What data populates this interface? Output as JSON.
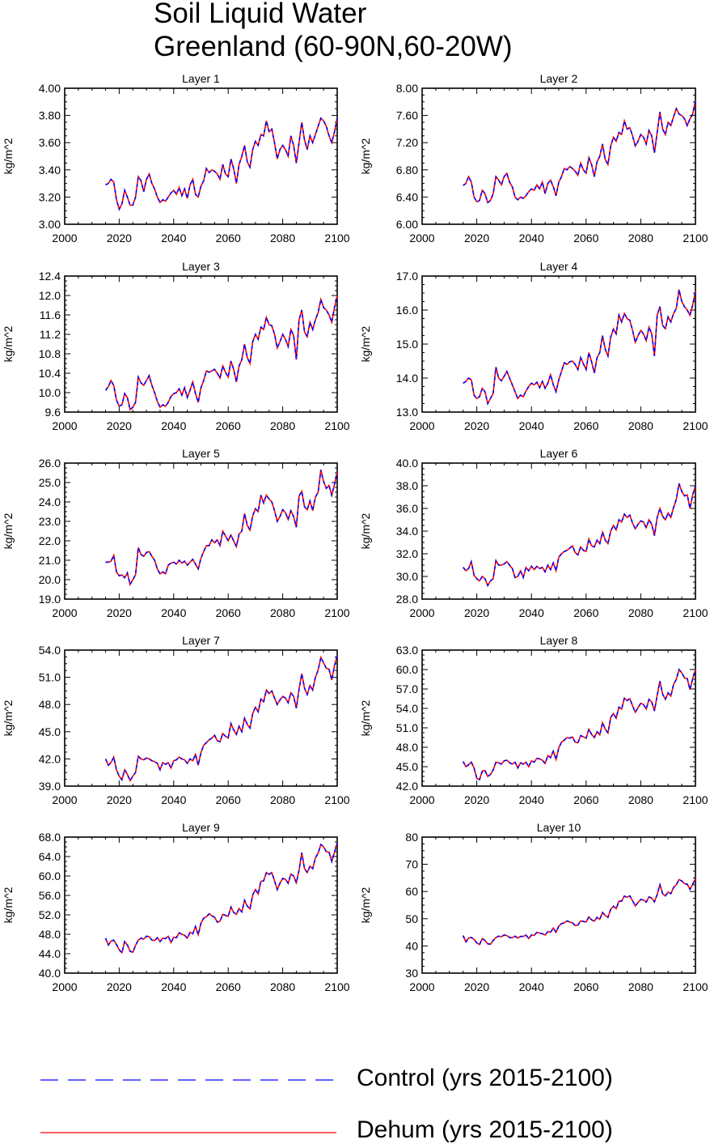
{
  "title": {
    "line1": "Soil Liquid Water",
    "line2": "Greenland (60-90N,60-20W)"
  },
  "legend": [
    {
      "label": "Control (yrs 2015-2100)",
      "color": "#0000ff",
      "style": "dashed"
    },
    {
      "label": "Dehum (yrs 2015-2100)",
      "color": "#ff0000",
      "style": "solid"
    }
  ],
  "chart_data": [
    {
      "type": "line",
      "title": "Layer 1",
      "xlabel": "",
      "ylabel": "kg/m^2",
      "xlim": [
        2000,
        2100
      ],
      "ylim": [
        3.0,
        4.0
      ],
      "xticks": [
        "2000",
        "2020",
        "2040",
        "2060",
        "2080",
        "2100"
      ],
      "yticks": [
        "3.00",
        "3.20",
        "3.40",
        "3.60",
        "3.80",
        "4.00"
      ],
      "x_start": 2015,
      "values": [
        3.29,
        3.3,
        3.33,
        3.31,
        3.18,
        3.11,
        3.15,
        3.25,
        3.2,
        3.14,
        3.14,
        3.2,
        3.35,
        3.32,
        3.24,
        3.33,
        3.37,
        3.3,
        3.26,
        3.2,
        3.16,
        3.18,
        3.17,
        3.2,
        3.23,
        3.25,
        3.22,
        3.27,
        3.21,
        3.26,
        3.19,
        3.29,
        3.33,
        3.22,
        3.2,
        3.28,
        3.32,
        3.41,
        3.38,
        3.4,
        3.39,
        3.37,
        3.33,
        3.44,
        3.37,
        3.35,
        3.48,
        3.41,
        3.3,
        3.44,
        3.5,
        3.58,
        3.46,
        3.42,
        3.55,
        3.61,
        3.58,
        3.66,
        3.65,
        3.76,
        3.68,
        3.7,
        3.6,
        3.48,
        3.55,
        3.58,
        3.55,
        3.5,
        3.65,
        3.58,
        3.45,
        3.6,
        3.75,
        3.62,
        3.55,
        3.65,
        3.6,
        3.66,
        3.72,
        3.78,
        3.76,
        3.72,
        3.65,
        3.6,
        3.68,
        3.78
      ]
    },
    {
      "type": "line",
      "title": "Layer 2",
      "xlabel": "",
      "ylabel": "kg/m^2",
      "xlim": [
        2000,
        2100
      ],
      "ylim": [
        6.0,
        8.0
      ],
      "xticks": [
        "2000",
        "2020",
        "2040",
        "2060",
        "2080",
        "2100"
      ],
      "yticks": [
        "6.00",
        "6.40",
        "6.80",
        "7.20",
        "7.60",
        "8.00"
      ],
      "x_start": 2015,
      "values": [
        6.57,
        6.6,
        6.7,
        6.62,
        6.4,
        6.33,
        6.35,
        6.5,
        6.45,
        6.32,
        6.35,
        6.45,
        6.7,
        6.65,
        6.58,
        6.7,
        6.75,
        6.62,
        6.55,
        6.4,
        6.36,
        6.4,
        6.38,
        6.42,
        6.48,
        6.52,
        6.5,
        6.58,
        6.52,
        6.62,
        6.45,
        6.6,
        6.65,
        6.55,
        6.42,
        6.62,
        6.7,
        6.82,
        6.8,
        6.85,
        6.82,
        6.78,
        6.72,
        6.9,
        6.8,
        6.75,
        6.98,
        6.88,
        6.7,
        6.92,
        7.0,
        7.18,
        6.95,
        6.88,
        7.15,
        7.28,
        7.22,
        7.35,
        7.32,
        7.52,
        7.4,
        7.42,
        7.3,
        7.15,
        7.22,
        7.32,
        7.28,
        7.18,
        7.38,
        7.3,
        7.05,
        7.35,
        7.65,
        7.4,
        7.32,
        7.5,
        7.45,
        7.58,
        7.7,
        7.62,
        7.6,
        7.55,
        7.45,
        7.55,
        7.62,
        7.82
      ]
    },
    {
      "type": "line",
      "title": "Layer 3",
      "xlabel": "",
      "ylabel": "kg/m^2",
      "xlim": [
        2000,
        2100
      ],
      "ylim": [
        9.6,
        12.4
      ],
      "xticks": [
        "2000",
        "2020",
        "2040",
        "2060",
        "2080",
        "2100"
      ],
      "yticks": [
        "9.6",
        "10.0",
        "10.4",
        "10.8",
        "11.2",
        "11.6",
        "12.0",
        "12.4"
      ],
      "x_start": 2015,
      "values": [
        10.05,
        10.12,
        10.25,
        10.15,
        9.85,
        9.72,
        9.75,
        9.98,
        9.9,
        9.65,
        9.7,
        9.8,
        10.32,
        10.2,
        10.15,
        10.25,
        10.35,
        10.15,
        10.0,
        9.82,
        9.7,
        9.75,
        9.72,
        9.8,
        9.92,
        9.98,
        10.0,
        10.08,
        9.95,
        10.1,
        9.9,
        10.05,
        10.22,
        9.98,
        9.8,
        10.1,
        10.25,
        10.45,
        10.42,
        10.45,
        10.48,
        10.4,
        10.3,
        10.55,
        10.42,
        10.32,
        10.65,
        10.48,
        10.22,
        10.55,
        10.68,
        11.0,
        10.72,
        10.6,
        11.05,
        11.2,
        11.1,
        11.35,
        11.3,
        11.55,
        11.4,
        11.38,
        11.2,
        10.92,
        11.05,
        11.2,
        11.1,
        10.95,
        11.3,
        11.18,
        10.68,
        11.5,
        11.7,
        11.25,
        11.15,
        11.45,
        11.3,
        11.5,
        11.65,
        11.92,
        11.75,
        11.7,
        11.6,
        11.45,
        11.75,
        12.0
      ]
    },
    {
      "type": "line",
      "title": "Layer 4",
      "xlabel": "",
      "ylabel": "kg/m^2",
      "xlim": [
        2000,
        2100
      ],
      "ylim": [
        13.0,
        17.0
      ],
      "xticks": [
        "2000",
        "2020",
        "2040",
        "2060",
        "2080",
        "2100"
      ],
      "yticks": [
        "13.0",
        "14.0",
        "15.0",
        "16.0",
        "17.0"
      ],
      "x_start": 2015,
      "values": [
        13.85,
        13.9,
        14.0,
        13.95,
        13.5,
        13.4,
        13.45,
        13.7,
        13.6,
        13.25,
        13.4,
        13.55,
        14.32,
        14.0,
        13.92,
        14.05,
        14.2,
        14.0,
        13.8,
        13.6,
        13.4,
        13.5,
        13.45,
        13.62,
        13.75,
        13.85,
        13.8,
        13.88,
        13.72,
        13.9,
        13.7,
        13.85,
        14.1,
        13.8,
        13.6,
        13.95,
        14.2,
        14.45,
        14.4,
        14.48,
        14.5,
        14.4,
        14.25,
        14.6,
        14.42,
        14.25,
        14.75,
        14.48,
        14.15,
        14.6,
        14.75,
        15.25,
        14.85,
        14.65,
        15.2,
        15.45,
        15.3,
        15.85,
        15.65,
        15.9,
        15.75,
        15.7,
        15.4,
        15.05,
        15.25,
        15.4,
        15.3,
        15.1,
        15.5,
        15.3,
        14.65,
        15.85,
        16.1,
        15.55,
        15.45,
        15.8,
        15.65,
        15.9,
        16.05,
        16.6,
        16.25,
        16.1,
        16.0,
        15.85,
        16.15,
        16.55
      ]
    },
    {
      "type": "line",
      "title": "Layer 5",
      "xlabel": "",
      "ylabel": "kg/m^2",
      "xlim": [
        2000,
        2100
      ],
      "ylim": [
        19.0,
        26.0
      ],
      "xticks": [
        "2000",
        "2020",
        "2040",
        "2060",
        "2080",
        "2100"
      ],
      "yticks": [
        "19.0",
        "20.0",
        "21.0",
        "22.0",
        "23.0",
        "24.0",
        "25.0",
        "26.0"
      ],
      "x_start": 2015,
      "values": [
        20.9,
        20.9,
        20.95,
        21.25,
        20.4,
        20.2,
        20.25,
        20.1,
        20.35,
        19.75,
        20.0,
        20.25,
        21.65,
        21.3,
        21.2,
        21.4,
        21.45,
        21.2,
        21.0,
        20.55,
        20.3,
        20.4,
        20.3,
        20.75,
        20.85,
        20.9,
        20.8,
        21.0,
        20.85,
        20.95,
        20.75,
        20.9,
        21.05,
        20.8,
        20.55,
        21.1,
        21.45,
        21.75,
        21.75,
        22.05,
        21.9,
        22.05,
        21.75,
        22.5,
        22.25,
        22.0,
        22.3,
        22.0,
        21.7,
        22.35,
        22.5,
        23.4,
        22.8,
        22.55,
        23.3,
        23.65,
        23.5,
        24.35,
        23.95,
        24.35,
        24.15,
        24.0,
        23.55,
        23.0,
        23.25,
        23.6,
        23.45,
        23.1,
        23.55,
        23.25,
        22.7,
        24.3,
        24.55,
        23.75,
        23.6,
        24.05,
        23.55,
        24.25,
        24.5,
        25.65,
        25.05,
        24.7,
        24.85,
        24.35,
        24.9,
        25.55
      ]
    },
    {
      "type": "line",
      "title": "Layer 6",
      "xlabel": "",
      "ylabel": "kg/m^2",
      "xlim": [
        2000,
        2100
      ],
      "ylim": [
        28.0,
        40.0
      ],
      "xticks": [
        "2000",
        "2020",
        "2040",
        "2060",
        "2080",
        "2100"
      ],
      "yticks": [
        "28.0",
        "30.0",
        "32.0",
        "34.0",
        "36.0",
        "38.0",
        "40.0"
      ],
      "x_start": 2015,
      "values": [
        30.8,
        30.5,
        30.7,
        31.3,
        30.1,
        29.8,
        29.6,
        30.0,
        29.8,
        29.2,
        29.6,
        29.8,
        31.4,
        31.0,
        31.0,
        31.1,
        31.3,
        31.0,
        30.7,
        29.9,
        30.0,
        30.5,
        29.9,
        30.8,
        30.5,
        30.9,
        30.6,
        30.9,
        30.7,
        30.8,
        30.4,
        31.0,
        30.6,
        31.2,
        30.5,
        31.7,
        32.0,
        32.2,
        32.3,
        32.5,
        32.7,
        32.1,
        31.9,
        32.6,
        32.3,
        32.2,
        33.3,
        32.7,
        32.6,
        33.2,
        32.9,
        33.9,
        33.2,
        32.9,
        34.0,
        34.5,
        34.1,
        35.0,
        34.8,
        35.5,
        35.2,
        35.4,
        34.7,
        34.2,
        34.6,
        34.9,
        34.8,
        34.3,
        35.0,
        34.6,
        33.6,
        35.2,
        36.0,
        35.3,
        35.0,
        35.6,
        35.2,
        36.1,
        36.8,
        38.2,
        37.5,
        37.1,
        37.2,
        36.0,
        37.2,
        38.0
      ]
    },
    {
      "type": "line",
      "title": "Layer 7",
      "xlabel": "",
      "ylabel": "kg/m^2",
      "xlim": [
        2000,
        2100
      ],
      "ylim": [
        39.0,
        54.0
      ],
      "xticks": [
        "2000",
        "2020",
        "2040",
        "2060",
        "2080",
        "2100"
      ],
      "yticks": [
        "39.0",
        "42.0",
        "45.0",
        "48.0",
        "51.0",
        "54.0"
      ],
      "x_start": 2015,
      "values": [
        42.0,
        41.3,
        41.6,
        42.2,
        40.8,
        40.1,
        39.7,
        40.8,
        40.3,
        39.6,
        40.1,
        40.5,
        42.3,
        42.0,
        41.9,
        42.1,
        42.0,
        41.8,
        41.7,
        41.5,
        40.8,
        41.6,
        41.4,
        41.6,
        41.0,
        41.8,
        41.9,
        42.2,
        42.0,
        41.9,
        41.5,
        42.0,
        41.8,
        42.5,
        41.3,
        42.7,
        43.5,
        43.8,
        44.1,
        44.3,
        44.6,
        44.0,
        43.9,
        44.8,
        44.5,
        44.3,
        45.9,
        45.2,
        44.7,
        45.6,
        45.0,
        46.5,
        45.8,
        45.4,
        47.0,
        47.7,
        47.2,
        48.6,
        48.3,
        49.6,
        49.2,
        49.5,
        48.7,
        48.0,
        48.5,
        48.9,
        48.7,
        48.2,
        49.3,
        48.9,
        47.6,
        49.7,
        51.4,
        49.8,
        49.1,
        50.1,
        49.6,
        51.0,
        51.8,
        53.2,
        52.6,
        52.0,
        51.9,
        50.7,
        52.3,
        53.4
      ]
    },
    {
      "type": "line",
      "title": "Layer 8",
      "xlabel": "",
      "ylabel": "kg/m^2",
      "xlim": [
        2000,
        2100
      ],
      "ylim": [
        42.0,
        63.0
      ],
      "xticks": [
        "2000",
        "2020",
        "2040",
        "2060",
        "2080",
        "2100"
      ],
      "yticks": [
        "42.0",
        "45.0",
        "48.0",
        "51.0",
        "54.0",
        "57.0",
        "60.0",
        "63.0"
      ],
      "x_start": 2015,
      "values": [
        45.8,
        45.0,
        45.3,
        45.7,
        44.8,
        43.2,
        43.0,
        44.3,
        44.4,
        43.5,
        43.8,
        44.5,
        45.7,
        45.6,
        45.4,
        45.9,
        46.0,
        45.6,
        45.4,
        45.7,
        44.8,
        45.6,
        45.4,
        45.7,
        45.0,
        45.9,
        45.7,
        46.3,
        46.2,
        46.0,
        45.5,
        46.7,
        46.4,
        47.4,
        46.1,
        47.9,
        48.8,
        49.1,
        49.5,
        49.4,
        49.6,
        48.8,
        48.7,
        49.8,
        49.6,
        49.4,
        50.8,
        50.0,
        49.5,
        50.4,
        49.9,
        51.8,
        50.8,
        50.2,
        52.6,
        53.2,
        52.5,
        54.2,
        53.9,
        55.6,
        55.2,
        55.5,
        54.4,
        53.4,
        54.1,
        54.8,
        54.6,
        53.9,
        55.4,
        55.0,
        53.6,
        56.0,
        58.2,
        56.2,
        55.4,
        56.4,
        55.9,
        57.7,
        58.5,
        60.0,
        59.5,
        58.7,
        58.6,
        56.9,
        58.6,
        60.0
      ]
    },
    {
      "type": "line",
      "title": "Layer 9",
      "xlabel": "",
      "ylabel": "kg/m^2",
      "xlim": [
        2000,
        2100
      ],
      "ylim": [
        40.0,
        68.0
      ],
      "xticks": [
        "2000",
        "2020",
        "2040",
        "2060",
        "2080",
        "2100"
      ],
      "yticks": [
        "40.0",
        "44.0",
        "48.0",
        "52.0",
        "56.0",
        "60.0",
        "64.0",
        "68.0"
      ],
      "x_start": 2015,
      "values": [
        47.2,
        45.8,
        46.6,
        46.8,
        45.9,
        44.8,
        44.2,
        46.5,
        45.8,
        44.5,
        44.3,
        45.7,
        46.8,
        47.2,
        47.0,
        47.6,
        47.5,
        46.8,
        46.7,
        47.3,
        46.5,
        47.2,
        47.1,
        47.6,
        46.3,
        47.4,
        47.3,
        48.3,
        48.0,
        47.8,
        47.2,
        48.4,
        48.1,
        49.6,
        47.9,
        50.3,
        51.3,
        51.6,
        52.2,
        51.8,
        51.5,
        50.5,
        50.7,
        52.1,
        51.9,
        51.7,
        53.6,
        52.5,
        52.1,
        53.3,
        52.6,
        55.0,
        53.8,
        53.2,
        56.1,
        57.2,
        56.3,
        58.9,
        59.0,
        60.7,
        60.3,
        60.7,
        59.0,
        57.2,
        58.5,
        59.5,
        59.3,
        58.5,
        60.4,
        60.0,
        58.6,
        61.2,
        64.8,
        61.5,
        60.7,
        62.0,
        61.5,
        63.7,
        64.7,
        66.5,
        66.0,
        65.0,
        64.9,
        63.0,
        64.9,
        66.8
      ]
    },
    {
      "type": "line",
      "title": "Layer 10",
      "xlabel": "",
      "ylabel": "kg/m^2",
      "xlim": [
        2000,
        2100
      ],
      "ylim": [
        30,
        80
      ],
      "xticks": [
        "2000",
        "2020",
        "2040",
        "2060",
        "2080",
        "2100"
      ],
      "yticks": [
        "30",
        "40",
        "50",
        "60",
        "70",
        "80"
      ],
      "x_start": 2015,
      "values": [
        43.8,
        41.5,
        42.9,
        43.1,
        42.4,
        41.1,
        40.5,
        42.7,
        42.0,
        40.8,
        40.6,
        42.0,
        43.1,
        43.6,
        43.4,
        44.0,
        43.8,
        43.1,
        43.0,
        43.6,
        42.9,
        43.5,
        43.5,
        44.0,
        42.7,
        44.0,
        43.9,
        45.0,
        44.7,
        44.5,
        44.0,
        45.3,
        45.0,
        46.6,
        45.0,
        47.3,
        48.2,
        48.5,
        49.2,
        48.8,
        48.5,
        47.5,
        47.7,
        49.2,
        49.0,
        48.8,
        50.7,
        49.6,
        49.1,
        50.5,
        49.8,
        52.3,
        51.2,
        50.5,
        53.5,
        54.6,
        53.7,
        56.4,
        56.5,
        58.3,
        57.9,
        58.4,
        56.6,
        54.7,
        56.0,
        57.1,
        56.9,
        56.1,
        58.0,
        57.6,
        56.2,
        58.9,
        62.5,
        59.2,
        58.4,
        59.8,
        59.2,
        61.5,
        62.5,
        64.4,
        63.9,
        62.9,
        62.7,
        60.8,
        62.7,
        64.8
      ]
    }
  ]
}
